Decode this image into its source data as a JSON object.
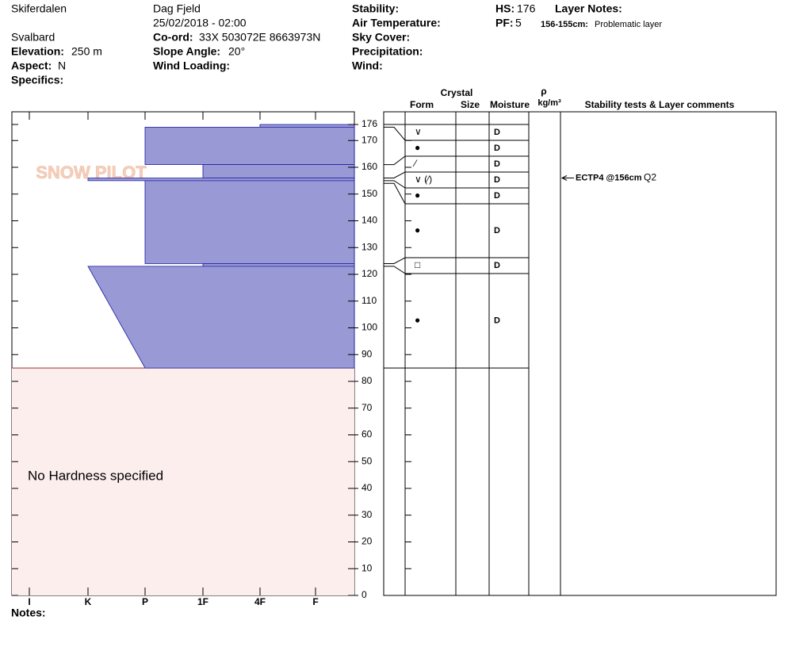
{
  "header": {
    "site": "Skiferdalen",
    "region": "Svalbard",
    "elevation_label": "Elevation:",
    "elevation": "250 m",
    "aspect_label": "Aspect:",
    "aspect": "N",
    "specifics_label": "Specifics:",
    "observer": "Dag Fjeld",
    "datetime": "25/02/2018 - 02:00",
    "coord_label": "Co-ord:",
    "coord": "33X 503072E 8663973N",
    "slope_label": "Slope Angle:",
    "slope": "20°",
    "wind_loading_label": "Wind Loading:",
    "stability_label": "Stability:",
    "air_temp_label": "Air Temperature:",
    "sky_label": "Sky Cover:",
    "precip_label": "Precipitation:",
    "wind_label": "Wind:",
    "hs_label": "HS:",
    "hs": 176,
    "pf_label": "PF:",
    "pf": 5,
    "layer_notes_label": "Layer Notes:",
    "layer_note_depth": "156-155cm:",
    "layer_note": "Problematic layer"
  },
  "columns": {
    "crystal": "Crystal",
    "form": "Form",
    "size": "Size",
    "moisture": "Moisture",
    "rho": "ρ",
    "density_unit": "kg/m³",
    "comments": "Stability tests & Layer comments"
  },
  "watermark": "SNOW PILOT",
  "height_ticks": [
    0,
    10,
    20,
    30,
    40,
    50,
    60,
    70,
    80,
    90,
    100,
    110,
    120,
    130,
    140,
    150,
    160,
    170,
    176
  ],
  "hardness_scale": [
    "I",
    "K",
    "P",
    "1F",
    "4F",
    "F"
  ],
  "hardness_layers": [
    {
      "top": 176,
      "bottom": 175,
      "hardness_top": "4F",
      "hardness_bottom": "4F"
    },
    {
      "top": 175,
      "bottom": 161,
      "hardness_top": "P",
      "hardness_bottom": "P"
    },
    {
      "top": 161,
      "bottom": 156,
      "hardness_top": "1F",
      "hardness_bottom": "1F"
    },
    {
      "top": 156,
      "bottom": 155,
      "hardness_top": "K",
      "hardness_bottom": "K"
    },
    {
      "top": 155,
      "bottom": 124,
      "hardness_top": "P",
      "hardness_bottom": "P"
    },
    {
      "top": 124,
      "bottom": 123,
      "hardness_top": "1F",
      "hardness_bottom": "1F"
    },
    {
      "top": 123,
      "bottom": 85,
      "hardness_top": "K",
      "hardness_bottom": "P"
    }
  ],
  "no_hardness_text": "No Hardness specified",
  "rows": [
    {
      "top": 176,
      "form": "∨",
      "moisture": "D"
    },
    {
      "top": 175,
      "form": "●",
      "moisture": "D"
    },
    {
      "top": 161,
      "form": "⁄",
      "moisture": "D"
    },
    {
      "top": 156,
      "form": "∨ (⁄)",
      "moisture": "D"
    },
    {
      "top": 155,
      "form": "●",
      "moisture": "D"
    },
    {
      "top": 154,
      "form": "●",
      "moisture": "D"
    },
    {
      "top": 124,
      "form": "□",
      "moisture": "D"
    },
    {
      "top": 123,
      "form": "●",
      "moisture": "D"
    }
  ],
  "rows_bottom": 85,
  "tests": [
    {
      "depth": 156,
      "label": "ECTP4 @156cm",
      "quality": "Q2"
    }
  ],
  "notes_label": "Notes:"
}
